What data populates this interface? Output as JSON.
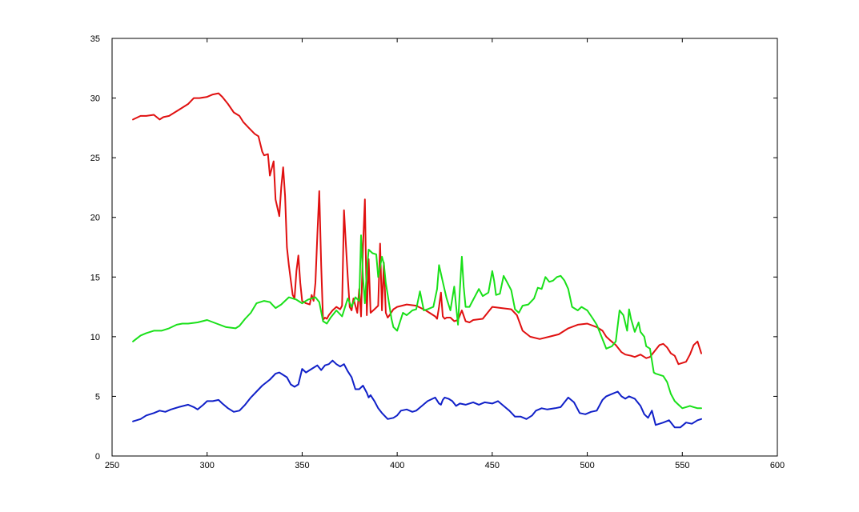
{
  "chart_data": {
    "type": "line",
    "title": "",
    "xlabel": "",
    "ylabel": "",
    "xlim": [
      250,
      600
    ],
    "ylim": [
      0,
      35
    ],
    "x_ticks": [
      250,
      300,
      350,
      400,
      450,
      500,
      550,
      600
    ],
    "y_ticks": [
      0,
      5,
      10,
      15,
      20,
      25,
      30,
      35
    ],
    "x_tick_labels": [
      "250",
      "300",
      "350",
      "400",
      "450",
      "500",
      "550",
      "600"
    ],
    "y_tick_labels": [
      "0",
      "5",
      "10",
      "15",
      "20",
      "25",
      "30",
      "35"
    ],
    "grid": false,
    "legend": "none",
    "series": [
      {
        "color": "#e01010",
        "x": [
          261,
          265,
          268,
          272,
          275,
          277,
          280,
          285,
          290,
          293,
          296,
          300,
          303,
          306,
          308,
          311,
          314,
          317,
          319,
          322,
          325,
          327,
          329,
          330,
          332,
          333,
          335,
          336,
          338,
          339,
          340,
          341,
          342,
          343,
          345,
          346,
          347,
          348,
          349,
          350,
          352,
          354,
          355,
          356,
          357,
          358,
          359,
          360,
          361,
          362,
          363,
          364,
          366,
          368,
          370,
          371,
          372,
          373,
          374,
          375,
          376,
          377,
          379,
          380,
          381,
          382,
          383,
          384,
          385,
          386,
          388,
          390,
          391,
          392,
          393,
          394,
          395,
          396,
          398,
          400,
          405,
          410,
          415,
          420,
          421,
          422,
          423,
          424,
          425,
          426,
          428,
          430,
          432,
          434,
          436,
          438,
          440,
          445,
          450,
          455,
          460,
          463,
          466,
          470,
          475,
          480,
          485,
          490,
          495,
          500,
          505,
          508,
          510,
          512,
          515,
          518,
          520,
          523,
          525,
          528,
          531,
          533,
          536,
          538,
          540,
          542,
          544,
          546,
          548,
          550,
          552,
          554,
          556,
          558,
          560
        ],
        "values": [
          28.2,
          28.5,
          28.5,
          28.6,
          28.2,
          28.4,
          28.5,
          29.0,
          29.5,
          30.0,
          30.0,
          30.1,
          30.3,
          30.4,
          30.1,
          29.5,
          28.8,
          28.5,
          28.0,
          27.5,
          27.0,
          26.8,
          25.5,
          25.2,
          25.3,
          23.5,
          24.7,
          21.5,
          20.1,
          22.5,
          24.2,
          21.8,
          17.5,
          16.0,
          13.5,
          13.2,
          15.5,
          16.8,
          14.5,
          13.0,
          12.8,
          12.7,
          13.5,
          13.0,
          14.5,
          18.5,
          22.2,
          16.0,
          11.4,
          11.6,
          11.5,
          11.8,
          12.2,
          12.5,
          12.3,
          12.6,
          20.6,
          17.8,
          15.0,
          12.5,
          12.2,
          13.2,
          12.0,
          14.0,
          11.7,
          17.5,
          21.5,
          11.8,
          16.5,
          12.0,
          12.3,
          12.6,
          17.8,
          12.2,
          16.2,
          12.0,
          11.6,
          11.8,
          12.3,
          12.5,
          12.7,
          12.6,
          12.2,
          11.7,
          11.5,
          12.5,
          13.7,
          11.7,
          11.5,
          11.6,
          11.6,
          11.3,
          11.4,
          12.2,
          11.3,
          11.2,
          11.4,
          11.5,
          12.5,
          12.4,
          12.3,
          11.8,
          10.5,
          10.0,
          9.8,
          10.0,
          10.2,
          10.7,
          11.0,
          11.1,
          10.8,
          10.5,
          10.0,
          9.7,
          9.3,
          8.7,
          8.5,
          8.4,
          8.3,
          8.5,
          8.2,
          8.3,
          8.9,
          9.3,
          9.4,
          9.1,
          8.6,
          8.4,
          7.7,
          7.8,
          7.9,
          8.5,
          9.3,
          9.6,
          8.6
        ]
      },
      {
        "color": "#19e019",
        "x": [
          261,
          265,
          268,
          272,
          276,
          280,
          284,
          287,
          290,
          295,
          300,
          305,
          310,
          315,
          317,
          320,
          323,
          326,
          330,
          333,
          336,
          339,
          343,
          347,
          350,
          353,
          357,
          359,
          361,
          363,
          365,
          368,
          371,
          374,
          376,
          378,
          380,
          381,
          382,
          383,
          384,
          385,
          387,
          389,
          390,
          392,
          393,
          394,
          395,
          397,
          398,
          400,
          403,
          405,
          408,
          410,
          412,
          414,
          416,
          419,
          421,
          422,
          424,
          426,
          428,
          430,
          431,
          432,
          433,
          434,
          435,
          436,
          438,
          440,
          443,
          445,
          448,
          450,
          451,
          452,
          454,
          456,
          458,
          460,
          462,
          464,
          466,
          469,
          472,
          474,
          476,
          478,
          480,
          482,
          484,
          486,
          488,
          490,
          492,
          495,
          497,
          500,
          503,
          505,
          507,
          510,
          513,
          515,
          517,
          519,
          521,
          522,
          523,
          525,
          527,
          528,
          530,
          531,
          533,
          535,
          536,
          538,
          540,
          542,
          544,
          546,
          548,
          550,
          552,
          554,
          556,
          558,
          560
        ],
        "values": [
          9.6,
          10.1,
          10.3,
          10.5,
          10.5,
          10.7,
          11.0,
          11.1,
          11.1,
          11.2,
          11.4,
          11.1,
          10.8,
          10.7,
          10.9,
          11.5,
          12.0,
          12.8,
          13.0,
          12.9,
          12.4,
          12.7,
          13.3,
          13.1,
          12.8,
          13.1,
          13.3,
          12.9,
          11.3,
          11.1,
          11.6,
          12.2,
          11.7,
          13.2,
          12.5,
          13.3,
          13.0,
          18.5,
          15.0,
          12.8,
          15.5,
          17.3,
          17.0,
          16.9,
          15.0,
          16.7,
          16.1,
          14.5,
          13.5,
          11.5,
          10.8,
          10.5,
          12.0,
          11.8,
          12.2,
          12.3,
          13.8,
          12.2,
          12.3,
          12.5,
          14.0,
          16.0,
          14.6,
          13.2,
          12.2,
          14.2,
          12.6,
          11.0,
          14.0,
          16.7,
          14.2,
          12.5,
          12.5,
          13.1,
          14.0,
          13.4,
          13.7,
          15.5,
          14.7,
          13.5,
          13.6,
          15.1,
          14.5,
          13.9,
          12.3,
          12.0,
          12.6,
          12.7,
          13.2,
          14.1,
          14.0,
          15.0,
          14.6,
          14.7,
          15.0,
          15.1,
          14.7,
          14.0,
          12.5,
          12.2,
          12.5,
          12.2,
          11.5,
          11.0,
          10.2,
          9.0,
          9.2,
          9.6,
          12.2,
          11.8,
          10.5,
          12.3,
          11.5,
          10.4,
          11.2,
          10.4,
          10.0,
          9.2,
          9.0,
          7.0,
          6.9,
          6.8,
          6.7,
          6.2,
          5.2,
          4.6,
          4.3,
          4.0,
          4.1,
          4.2,
          4.1,
          4.0,
          4.0
        ]
      },
      {
        "color": "#1020c8",
        "x": [
          261,
          265,
          268,
          272,
          275,
          278,
          281,
          285,
          290,
          293,
          295,
          298,
          300,
          303,
          306,
          308,
          311,
          314,
          317,
          320,
          323,
          326,
          329,
          333,
          336,
          338,
          340,
          342,
          344,
          346,
          348,
          350,
          352,
          354,
          356,
          358,
          360,
          362,
          364,
          366,
          368,
          370,
          372,
          374,
          376,
          378,
          380,
          382,
          384,
          385,
          386,
          388,
          390,
          392,
          395,
          398,
          400,
          402,
          405,
          408,
          410,
          413,
          416,
          420,
          422,
          423,
          424,
          425,
          427,
          429,
          431,
          433,
          436,
          440,
          443,
          446,
          450,
          453,
          456,
          459,
          462,
          465,
          468,
          471,
          473,
          476,
          479,
          483,
          486,
          490,
          493,
          496,
          499,
          502,
          505,
          508,
          510,
          513,
          516,
          518,
          520,
          522,
          525,
          528,
          530,
          532,
          534,
          536,
          538,
          540,
          543,
          546,
          549,
          552,
          555,
          558,
          560
        ],
        "values": [
          2.9,
          3.1,
          3.4,
          3.6,
          3.8,
          3.7,
          3.9,
          4.1,
          4.3,
          4.1,
          3.9,
          4.3,
          4.6,
          4.6,
          4.7,
          4.4,
          4.0,
          3.7,
          3.8,
          4.3,
          4.9,
          5.4,
          5.9,
          6.4,
          6.9,
          7.0,
          6.8,
          6.6,
          6.0,
          5.8,
          6.0,
          7.3,
          7.0,
          7.2,
          7.4,
          7.6,
          7.2,
          7.6,
          7.7,
          8.0,
          7.7,
          7.5,
          7.7,
          7.1,
          6.6,
          5.6,
          5.6,
          5.9,
          5.3,
          4.9,
          5.1,
          4.6,
          4.0,
          3.6,
          3.1,
          3.2,
          3.4,
          3.8,
          3.9,
          3.7,
          3.8,
          4.2,
          4.6,
          4.9,
          4.4,
          4.3,
          4.7,
          4.9,
          4.8,
          4.6,
          4.2,
          4.4,
          4.3,
          4.5,
          4.3,
          4.5,
          4.4,
          4.6,
          4.2,
          3.8,
          3.3,
          3.3,
          3.1,
          3.4,
          3.8,
          4.0,
          3.9,
          4.0,
          4.1,
          4.9,
          4.5,
          3.6,
          3.5,
          3.7,
          3.8,
          4.7,
          5.0,
          5.2,
          5.4,
          5.0,
          4.8,
          5.0,
          4.8,
          4.2,
          3.5,
          3.2,
          3.8,
          2.6,
          2.7,
          2.8,
          3.0,
          2.4,
          2.4,
          2.8,
          2.7,
          3.0,
          3.1
        ]
      }
    ]
  }
}
